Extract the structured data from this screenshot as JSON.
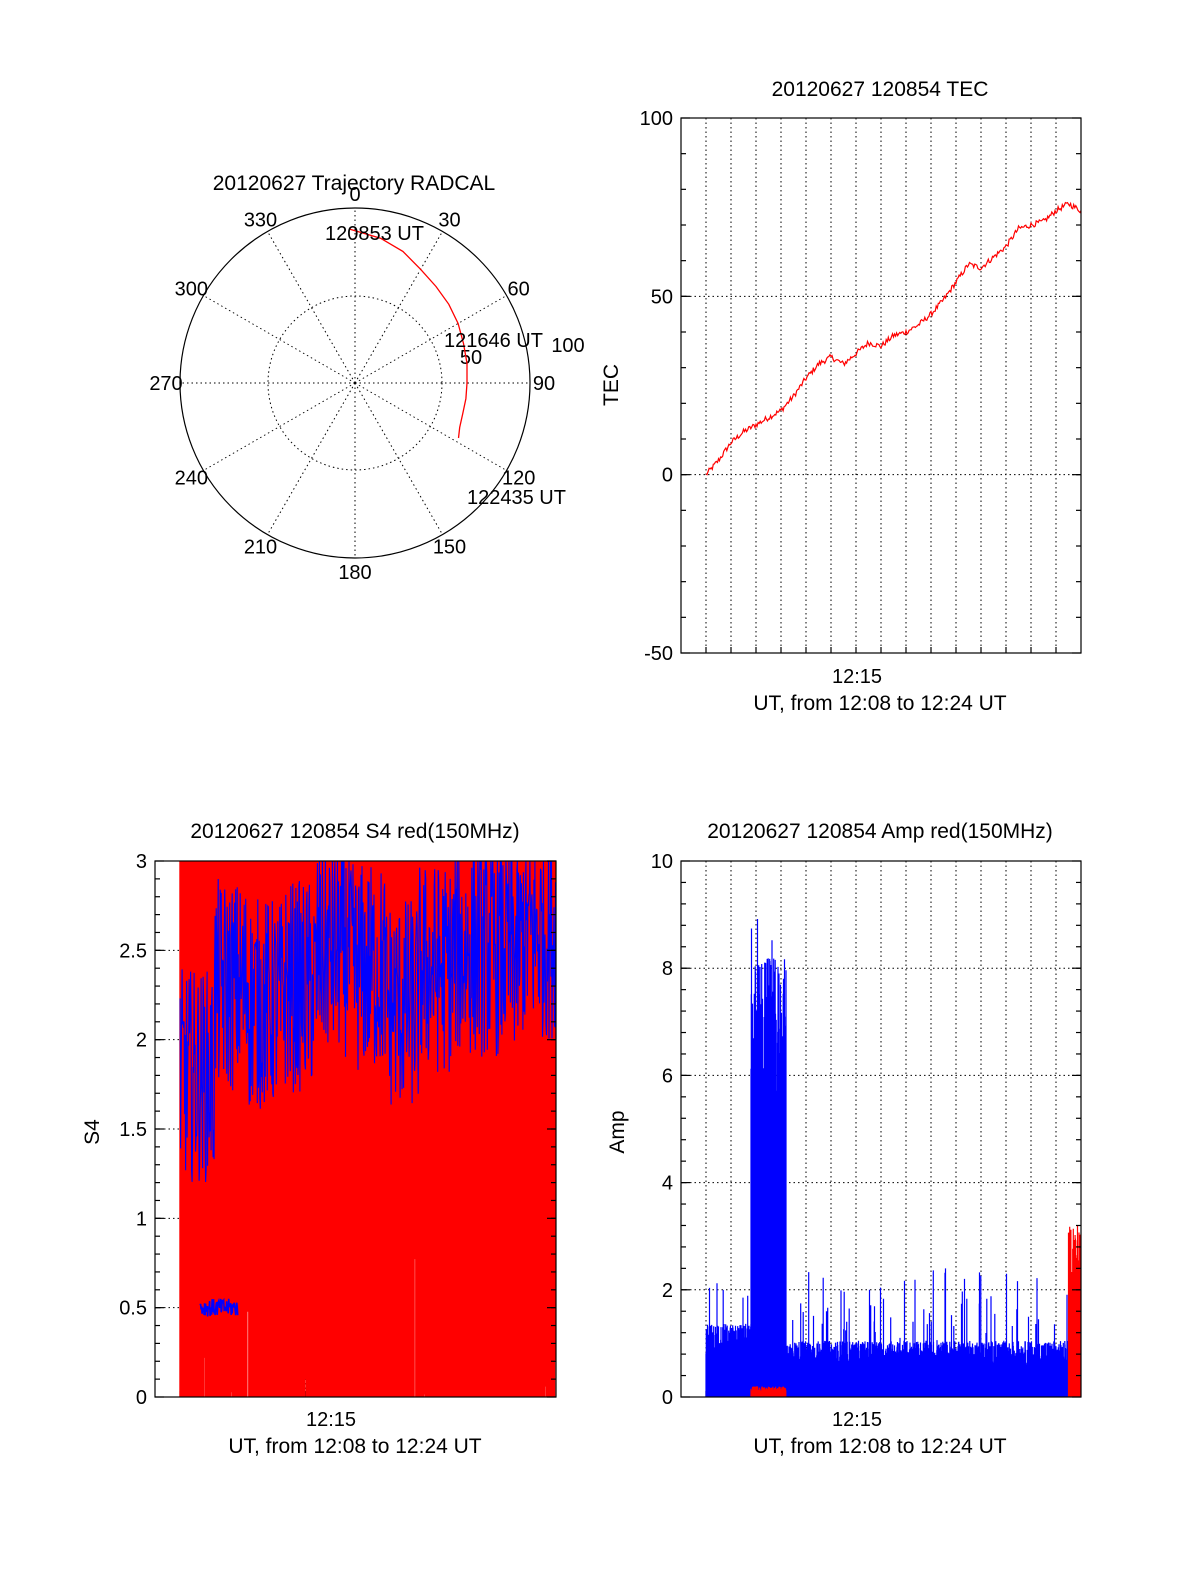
{
  "colors": {
    "red": "#ff0000",
    "blue": "#0000ff",
    "axis": "#000000"
  },
  "chart_data": [
    {
      "id": "trajectory",
      "type": "polar",
      "title": "20120627 Trajectory RADCAL",
      "angle_labels": [
        "0",
        "30",
        "60",
        "90",
        "120",
        "150",
        "180",
        "210",
        "240",
        "270",
        "300",
        "330"
      ],
      "radial_labels": [
        "50",
        "100"
      ],
      "annotations": [
        "120853 UT",
        "121646 UT",
        "122435 UT"
      ],
      "series": [
        {
          "name": "trajectory",
          "color": "red",
          "points": [
            [
              -2,
              88
            ],
            [
              10,
              84
            ],
            [
              20,
              80
            ],
            [
              30,
              75
            ],
            [
              40,
              72
            ],
            [
              50,
              70
            ],
            [
              60,
              68
            ],
            [
              70,
              66
            ],
            [
              80,
              65
            ],
            [
              90,
              64
            ],
            [
              98,
              64
            ],
            [
              106,
              64
            ],
            [
              113,
              65
            ],
            [
              118,
              67
            ]
          ]
        }
      ]
    },
    {
      "id": "tec",
      "type": "line",
      "title": "20120627 120854 TEC",
      "xlabel": "UT, from 12:08 to 12:24 UT",
      "ylabel": "TEC",
      "xlim": [
        8.0,
        24.0
      ],
      "ylim": [
        -50,
        100
      ],
      "yticks": [
        "100",
        "50",
        "0",
        "-50"
      ],
      "xtick_label": "12:15",
      "series": [
        {
          "name": "TEC",
          "color": "red",
          "x": [
            9.0,
            9.5,
            10.0,
            10.5,
            11.0,
            11.5,
            12.0,
            12.5,
            13.0,
            13.5,
            14.0,
            14.5,
            15.0,
            15.5,
            16.0,
            16.5,
            17.0,
            17.5,
            18.0,
            18.5,
            19.0,
            19.5,
            20.0,
            20.5,
            21.0,
            21.5,
            22.0,
            22.5,
            23.0,
            23.5,
            24.0
          ],
          "y": [
            0,
            4,
            9,
            12,
            14,
            16,
            18,
            22,
            27,
            31,
            33,
            31,
            34,
            37,
            36,
            39,
            40,
            42,
            45,
            49,
            54,
            59,
            58,
            61,
            64,
            69,
            70,
            71,
            74,
            76,
            74
          ]
        }
      ]
    },
    {
      "id": "s4",
      "type": "line",
      "title": "20120627 120854 S4 red(150MHz)",
      "xlabel": "UT, from 12:08 to 12:24 UT",
      "ylabel": "S4",
      "xlim": [
        8.0,
        24.0
      ],
      "ylim": [
        0,
        3
      ],
      "yticks": [
        "3",
        "2.5",
        "2",
        "1.5",
        "1",
        "0.5",
        "0"
      ],
      "xtick_label": "12:15",
      "series": [
        {
          "name": "S4 red",
          "color": "red",
          "x_range": [
            9.0,
            24.0
          ],
          "level": 3.0,
          "min": 0.0
        },
        {
          "name": "S4 blue",
          "color": "blue",
          "x_range": [
            9.0,
            24.0
          ],
          "center": [
            1.8,
            2.3,
            2.2,
            2.3,
            2.5,
            2.4,
            2.2,
            2.4,
            2.5,
            2.5,
            2.6
          ],
          "spread": 0.6
        },
        {
          "name": "S4 blue low",
          "color": "blue",
          "x_range": [
            9.8,
            11.3
          ],
          "center": [
            0.5
          ],
          "spread": 0.05
        }
      ]
    },
    {
      "id": "amp",
      "type": "line",
      "title": "20120627 120854 Amp red(150MHz)",
      "xlabel": "UT, from 12:08 to 12:24 UT",
      "ylabel": "Amp",
      "xlim": [
        8.0,
        24.0
      ],
      "ylim": [
        0,
        10
      ],
      "yticks": [
        "10",
        "8",
        "6",
        "4",
        "2",
        "0"
      ],
      "xtick_label": "12:15",
      "series": [
        {
          "name": "Amp blue",
          "color": "blue",
          "segments": [
            {
              "x_range": [
                9.0,
                10.8
              ],
              "top": 1.3,
              "spike": 2.2
            },
            {
              "x_range": [
                10.8,
                12.2
              ],
              "top": 7.8,
              "spike": 9.2
            },
            {
              "x_range": [
                12.2,
                24.0
              ],
              "top": 1.0,
              "spike": 2.4
            }
          ]
        },
        {
          "name": "Amp red",
          "color": "red",
          "segments": [
            {
              "x_range": [
                10.8,
                12.2
              ],
              "top": 0.2
            },
            {
              "x_range": [
                23.5,
                24.0
              ],
              "top": 3.2
            }
          ]
        }
      ]
    }
  ]
}
